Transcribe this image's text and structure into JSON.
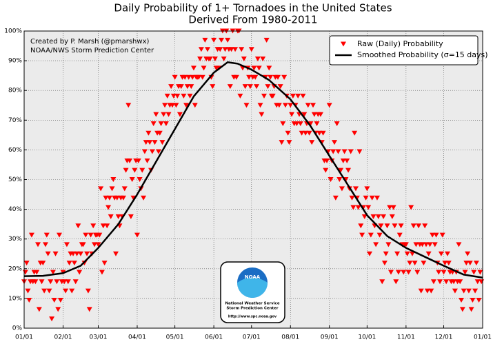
{
  "chart_data": {
    "type": "scatter",
    "title": "Daily Probability of 1+ Tornadoes in the United States",
    "subtitle": "Derived From 1980-2011",
    "annotation": [
      "Created by P. Marsh (@pmarshwx)",
      "NOAA/NWS Storm Prediction Center"
    ],
    "logo": {
      "name": "NOAA",
      "lines": [
        "National Weather Service",
        "Storm Prediction Center",
        "http://www.spc.noaa.gov"
      ]
    },
    "xlim": [
      0,
      365
    ],
    "ylim": [
      0,
      100
    ],
    "xticks": [
      {
        "value": 0,
        "label": "01/01"
      },
      {
        "value": 31,
        "label": "02/01"
      },
      {
        "value": 59,
        "label": "03/01"
      },
      {
        "value": 90,
        "label": "04/01"
      },
      {
        "value": 120,
        "label": "05/01"
      },
      {
        "value": 151,
        "label": "06/01"
      },
      {
        "value": 181,
        "label": "07/01"
      },
      {
        "value": 212,
        "label": "08/01"
      },
      {
        "value": 243,
        "label": "09/01"
      },
      {
        "value": 273,
        "label": "10/01"
      },
      {
        "value": 304,
        "label": "11/01"
      },
      {
        "value": 334,
        "label": "12/01"
      },
      {
        "value": 365,
        "label": "01/01"
      }
    ],
    "yticks": [
      {
        "value": 0,
        "label": "0%"
      },
      {
        "value": 10,
        "label": "10%"
      },
      {
        "value": 20,
        "label": "20%"
      },
      {
        "value": 30,
        "label": "30%"
      },
      {
        "value": 40,
        "label": "40%"
      },
      {
        "value": 50,
        "label": "50%"
      },
      {
        "value": 60,
        "label": "60%"
      },
      {
        "value": 70,
        "label": "70%"
      },
      {
        "value": 80,
        "label": "80%"
      },
      {
        "value": 90,
        "label": "90%"
      },
      {
        "value": 100,
        "label": "100%"
      }
    ],
    "grid": true,
    "legend": "upper right",
    "series": [
      {
        "name": "Raw (Daily) Probability",
        "color": "#ff0000",
        "values": [
          15.6,
          18.8,
          21.9,
          12.5,
          9.4,
          15.6,
          31.3,
          15.6,
          18.8,
          15.6,
          18.8,
          28.1,
          6.3,
          21.9,
          15.6,
          21.9,
          12.5,
          28.1,
          31.3,
          25,
          12.5,
          15.6,
          3.1,
          18.8,
          9.4,
          25,
          15.6,
          6.3,
          31.3,
          9.4,
          15.6,
          18.8,
          15.6,
          12.5,
          28.1,
          15.6,
          21.9,
          25,
          12.5,
          25,
          21.9,
          15.6,
          25,
          34.4,
          18.8,
          25,
          28.1,
          28.1,
          21.9,
          31.3,
          25,
          12.5,
          6.3,
          31.3,
          25,
          34.4,
          28.1,
          31.3,
          31.3,
          28.1,
          31.3,
          46.9,
          18.8,
          34.4,
          21.9,
          43.8,
          34.4,
          40.6,
          43.8,
          37.5,
          46.9,
          50,
          43.8,
          25,
          43.8,
          37.5,
          34.4,
          43.8,
          37.5,
          43.8,
          46.9,
          53.1,
          56.3,
          75,
          56.3,
          37.5,
          50,
          43.8,
          53.1,
          56.3,
          31.3,
          56.3,
          50,
          46.9,
          53.1,
          43.8,
          59.4,
          62.5,
          56.3,
          65.6,
          62.5,
          53.1,
          59.4,
          68.8,
          62.5,
          71.9,
          65.6,
          59.4,
          65.6,
          68.8,
          62.5,
          71.9,
          75,
          68.8,
          78.1,
          71.9,
          75,
          81.3,
          75,
          78.1,
          84.4,
          75,
          78.1,
          81.3,
          71.9,
          81.3,
          84.4,
          78.1,
          84.4,
          75,
          81.3,
          84.4,
          78.1,
          81.3,
          84.4,
          87.5,
          75,
          84.4,
          84.4,
          84.4,
          90.6,
          93.8,
          84.4,
          87.5,
          96.9,
          90.6,
          93.8,
          90.6,
          90.6,
          84.4,
          81.3,
          96.9,
          90.6,
          87.5,
          93.8,
          87.5,
          93.8,
          96.9,
          100,
          90.6,
          93.8,
          100,
          96.9,
          93.8,
          81.3,
          93.8,
          100,
          84.4,
          93.8,
          84.4,
          100,
          100,
          78.1,
          93.8,
          87.5,
          90.6,
          81.3,
          75,
          87.5,
          84.4,
          81.3,
          93.8,
          84.4,
          87.5,
          84.4,
          81.3,
          90.6,
          87.5,
          75,
          71.9,
          90.6,
          78.1,
          84.4,
          96.9,
          81.3,
          87.5,
          84.4,
          78.1,
          78.1,
          81.3,
          84.4,
          75,
          84.4,
          75,
          81.3,
          62.5,
          68.8,
          84.4,
          75,
          78.1,
          65.6,
          62.5,
          75,
          71.9,
          78.1,
          68.8,
          75,
          68.8,
          78.1,
          71.9,
          68.8,
          65.6,
          78.1,
          71.9,
          65.6,
          68.8,
          75,
          65.6,
          68.8,
          62.5,
          75,
          71.9,
          65.6,
          68.8,
          71.9,
          65.6,
          71.9,
          62.5,
          65.6,
          56.3,
          53.1,
          56.3,
          59.4,
          75,
          50,
          56.3,
          59.4,
          62.5,
          43.8,
          68.8,
          59.4,
          50,
          53.1,
          46.9,
          56.3,
          59.4,
          50,
          56.3,
          53.1,
          46.9,
          59.4,
          43.8,
          40.6,
          65.6,
          46.9,
          43.8,
          40.6,
          59.4,
          34.4,
          31.3,
          40.6,
          37.5,
          43.8,
          46.9,
          40.6,
          25,
          31.3,
          43.8,
          37.5,
          34.4,
          28.1,
          43.8,
          37.5,
          31.3,
          34.4,
          15.6,
          37.5,
          21.9,
          25,
          34.4,
          28.1,
          40.6,
          18.8,
          37.5,
          40.6,
          34.4,
          15.6,
          25,
          18.8,
          31.3,
          34.4,
          28.1,
          18.8,
          28.1,
          28.1,
          25,
          18.8,
          21.9,
          40.6,
          25,
          34.4,
          21.9,
          28.1,
          18.8,
          34.4,
          28.1,
          12.5,
          28.1,
          21.9,
          34.4,
          28.1,
          12.5,
          25,
          28.1,
          12.5,
          31.3,
          15.6,
          28.1,
          31.3,
          21.9,
          18.8,
          15.6,
          25,
          31.3,
          18.8,
          21.9,
          15.6,
          25,
          21.9,
          18.8,
          15.6,
          18.8,
          15.6,
          12.5,
          18.8,
          15.6,
          28.1,
          15.6,
          9.4,
          6.3,
          12.5,
          18.8,
          21.9,
          25,
          12.5,
          21.9,
          6.3,
          9.4,
          18.8,
          12.5,
          21.9,
          15.6,
          9.4,
          18.8,
          15.6
        ]
      },
      {
        "name": "Smoothed Probability (σ=15 days)",
        "color": "#000000",
        "type": "line",
        "x": [
          0,
          15,
          31,
          45,
          59,
          75,
          90,
          105,
          120,
          135,
          151,
          162,
          170,
          181,
          195,
          212,
          228,
          243,
          258,
          273,
          289,
          304,
          319,
          334,
          350,
          365
        ],
        "values": [
          17.5,
          17.6,
          18.5,
          21,
          27,
          35,
          45,
          56,
          67,
          78,
          86,
          89.5,
          89,
          87,
          83.5,
          77,
          68,
          58,
          48,
          38,
          31,
          27,
          24,
          21,
          18,
          17
        ]
      }
    ]
  }
}
